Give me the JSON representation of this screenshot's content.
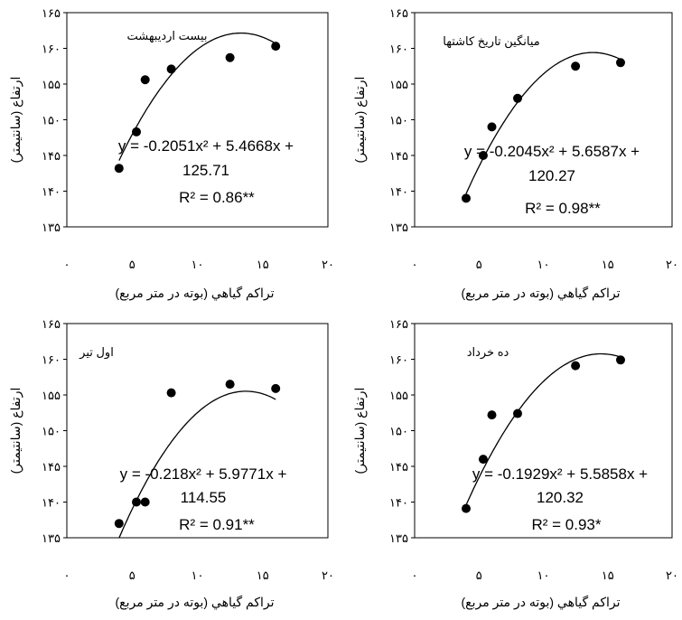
{
  "chart_data": [
    {
      "type": "scatter",
      "title": "بیست اردیبهشت",
      "xlabel": "تراکم گیاهي (بوته در متر مربع)",
      "ylabel": "ارتفاع (سانتیمتر)",
      "xlim": [
        0,
        20
      ],
      "ylim": [
        135,
        165
      ],
      "x_ticks": [
        "۰",
        "۵",
        "۱۰",
        "۱۵",
        "۲۰"
      ],
      "y_ticks": [
        "۱۳۵",
        "۱۴۰",
        "۱۴۵",
        "۱۵۰",
        "۱۵۵",
        "۱۶۰",
        "۱۶۵"
      ],
      "series": [
        {
          "x": [
            4,
            5.33,
            6,
            8,
            12.5,
            16
          ],
          "y": [
            143.2,
            148.3,
            155.6,
            157.1,
            158.7,
            160.3
          ]
        }
      ],
      "trendline": {
        "type": "polynomial",
        "a": -0.2051,
        "b": 5.4668,
        "c": 125.71,
        "x_range": [
          4,
          16
        ]
      },
      "equation_lines": [
        "y = -0.2051x² + 5.4668x +",
        "125.71"
      ],
      "r2": "R² = 0.86**"
    },
    {
      "type": "scatter",
      "title": "میانگین تاریخ کاشتها",
      "xlabel": "تراکم گیاهي (بوته در متر مربع)",
      "ylabel": "ارتفاع (سانتیمتر)",
      "xlim": [
        0,
        20
      ],
      "ylim": [
        135,
        165
      ],
      "x_ticks": [
        "۰",
        "۵",
        "۱۰",
        "۱۵",
        "۲۰"
      ],
      "y_ticks": [
        "۱۳۵",
        "۱۴۰",
        "۱۴۵",
        "۱۵۰",
        "۱۵۵",
        "۱۶۰",
        "۱۶۵"
      ],
      "series": [
        {
          "x": [
            4,
            5.33,
            6,
            8,
            12.5,
            16
          ],
          "y": [
            139,
            145,
            149,
            153,
            157.5,
            158
          ]
        }
      ],
      "trendline": {
        "type": "polynomial",
        "a": -0.2045,
        "b": 5.6587,
        "c": 120.27,
        "x_range": [
          4,
          16
        ]
      },
      "equation_lines": [
        "y = -0.2045x² + 5.6587x +",
        "120.27"
      ],
      "r2": "R² = 0.98**"
    },
    {
      "type": "scatter",
      "title": "اول تیر",
      "xlabel": "تراکم گیاهي (بوته در متر مربع)",
      "ylabel": "ارتفاع (سانتیمتر)",
      "xlim": [
        0,
        20
      ],
      "ylim": [
        135,
        165
      ],
      "x_ticks": [
        "۰",
        "۵",
        "۱۰",
        "۱۵",
        "۲۰"
      ],
      "y_ticks": [
        "۱۳۵",
        "۱۴۰",
        "۱۴۵",
        "۱۵۰",
        "۱۵۵",
        "۱۶۰",
        "۱۶۵"
      ],
      "series": [
        {
          "x": [
            4,
            5.33,
            6,
            8,
            12.5,
            16
          ],
          "y": [
            137,
            140,
            140,
            155.3,
            156.5,
            155.9
          ]
        }
      ],
      "trendline": {
        "type": "polynomial",
        "a": -0.218,
        "b": 5.9771,
        "c": 114.55,
        "x_range": [
          4,
          16
        ]
      },
      "equation_lines": [
        "y = -0.218x² + 5.9771x +",
        "114.55"
      ],
      "r2": "R² = 0.91**"
    },
    {
      "type": "scatter",
      "title": "ده خرداد",
      "xlabel": "تراکم گیاهي (بوته در متر مربع)",
      "ylabel": "ارتفاع (سانتیمتر)",
      "xlim": [
        0,
        20
      ],
      "ylim": [
        135,
        165
      ],
      "x_ticks": [
        "۰",
        "۵",
        "۱۰",
        "۱۵",
        "۲۰"
      ],
      "y_ticks": [
        "۱۳۵",
        "۱۴۰",
        "۱۴۵",
        "۱۵۰",
        "۱۵۵",
        "۱۶۰",
        "۱۶۵"
      ],
      "series": [
        {
          "x": [
            4,
            5.33,
            6,
            8,
            12.5,
            16
          ],
          "y": [
            139.1,
            146,
            152.2,
            152.4,
            159.1,
            159.9
          ]
        }
      ],
      "trendline": {
        "type": "polynomial",
        "a": -0.1929,
        "b": 5.5858,
        "c": 120.32,
        "x_range": [
          4,
          16
        ]
      },
      "equation_lines": [
        "y = -0.1929x² + 5.5858x +",
        "120.32"
      ],
      "r2": "R² = 0.93*"
    }
  ]
}
